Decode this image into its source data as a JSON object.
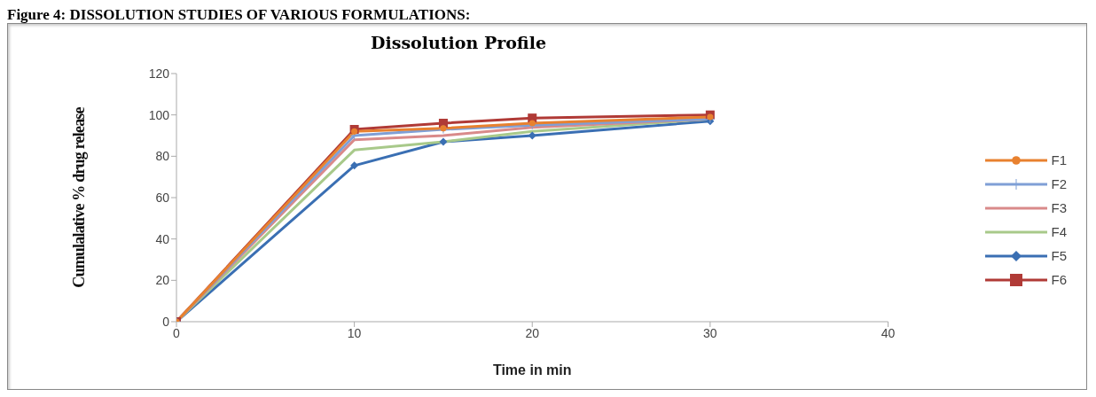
{
  "chart_data": {
    "type": "line",
    "title": "Dissolution Profile",
    "xlabel": "Time in min",
    "ylabel": "Cumulalative % drug release",
    "annotations": [
      "Figure 4: DISSOLUTION STUDIES OF VARIOUS FORMULATIONS:"
    ],
    "x": [
      0,
      10,
      15,
      20,
      30
    ],
    "xlim": [
      0,
      40
    ],
    "xticks": [
      0,
      10,
      20,
      30,
      40
    ],
    "ylim": [
      0,
      120
    ],
    "yticks": [
      0,
      20,
      40,
      60,
      80,
      100,
      120
    ],
    "grid": false,
    "legend": "right",
    "series": [
      {
        "name": "F1",
        "color": "#e8812f",
        "marker": "circle",
        "values": [
          0,
          92,
          93.5,
          96,
          99
        ]
      },
      {
        "name": "F2",
        "color": "#7f9fd6",
        "marker": "cross",
        "values": [
          0,
          90,
          93,
          95,
          98
        ]
      },
      {
        "name": "F3",
        "color": "#d98a8a",
        "marker": "none",
        "values": [
          0,
          88,
          90,
          94,
          98
        ]
      },
      {
        "name": "F4",
        "color": "#a8c98a",
        "marker": "none",
        "values": [
          0,
          83,
          87,
          92,
          98
        ]
      },
      {
        "name": "F5",
        "color": "#3a6fb3",
        "marker": "diamond",
        "values": [
          0,
          75.5,
          87,
          90,
          97
        ]
      },
      {
        "name": "F6",
        "color": "#b03a36",
        "marker": "square",
        "values": [
          0,
          93,
          96,
          98.5,
          100
        ]
      }
    ]
  }
}
